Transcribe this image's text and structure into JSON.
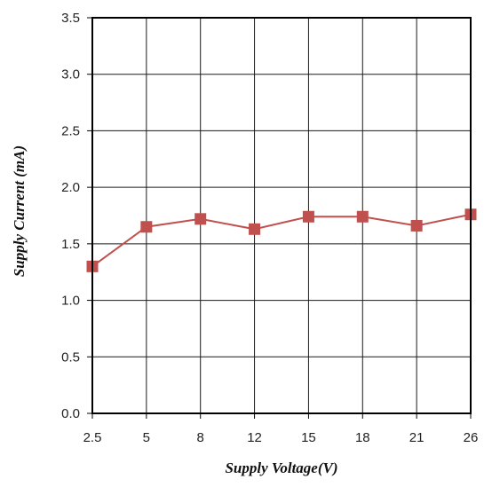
{
  "chart_data": {
    "type": "line",
    "categories": [
      "2.5",
      "5",
      "8",
      "12",
      "15",
      "18",
      "21",
      "26"
    ],
    "series": [
      {
        "values": [
          1.3,
          1.65,
          1.72,
          1.63,
          1.74,
          1.74,
          1.66,
          1.76
        ],
        "color": "#c0504d",
        "marker": "square"
      }
    ],
    "title": "",
    "xlabel": "Supply Voltage(V)",
    "ylabel": "Supply Current (mA)",
    "ylim": [
      0,
      3.5
    ],
    "yticks": [
      "0.0",
      "0.5",
      "1.0",
      "1.5",
      "2.0",
      "2.5",
      "3.0",
      "3.5"
    ],
    "grid": true,
    "legend": "none"
  }
}
